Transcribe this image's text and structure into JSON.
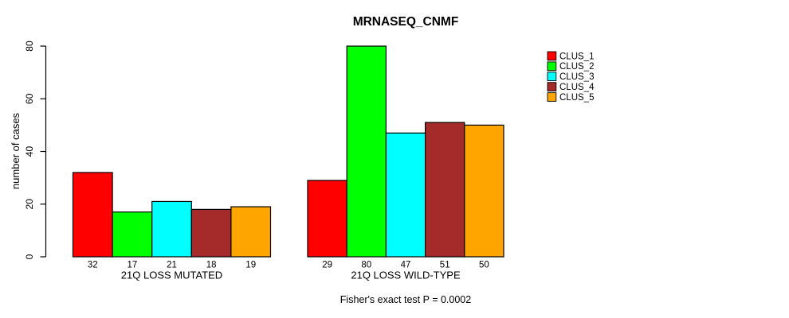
{
  "chart_data": {
    "type": "bar",
    "title": "MRNASEQ_CNMF",
    "xlabel": "",
    "ylabel": "number of cases",
    "caption": "Fisher's exact test P = 0.0002",
    "categories": [
      "21Q LOSS MUTATED",
      "21Q LOSS WILD-TYPE"
    ],
    "series": [
      {
        "name": "CLUS_1",
        "color": "#FF0000",
        "values": [
          32,
          29
        ]
      },
      {
        "name": "CLUS_2",
        "color": "#00FF00",
        "values": [
          17,
          80
        ]
      },
      {
        "name": "CLUS_3",
        "color": "#00FFFF",
        "values": [
          21,
          47
        ]
      },
      {
        "name": "CLUS_4",
        "color": "#A52A2A",
        "values": [
          18,
          51
        ]
      },
      {
        "name": "CLUS_5",
        "color": "#FFA500",
        "values": [
          19,
          50
        ]
      }
    ],
    "ylim": [
      0,
      80
    ],
    "yticks": [
      0,
      20,
      40,
      60,
      80
    ],
    "bar_value_labels": true,
    "legend_position": "right",
    "grid": false,
    "bar_border_color": "#000000",
    "text_color": "#000000",
    "background_color": "#FFFFFF"
  }
}
